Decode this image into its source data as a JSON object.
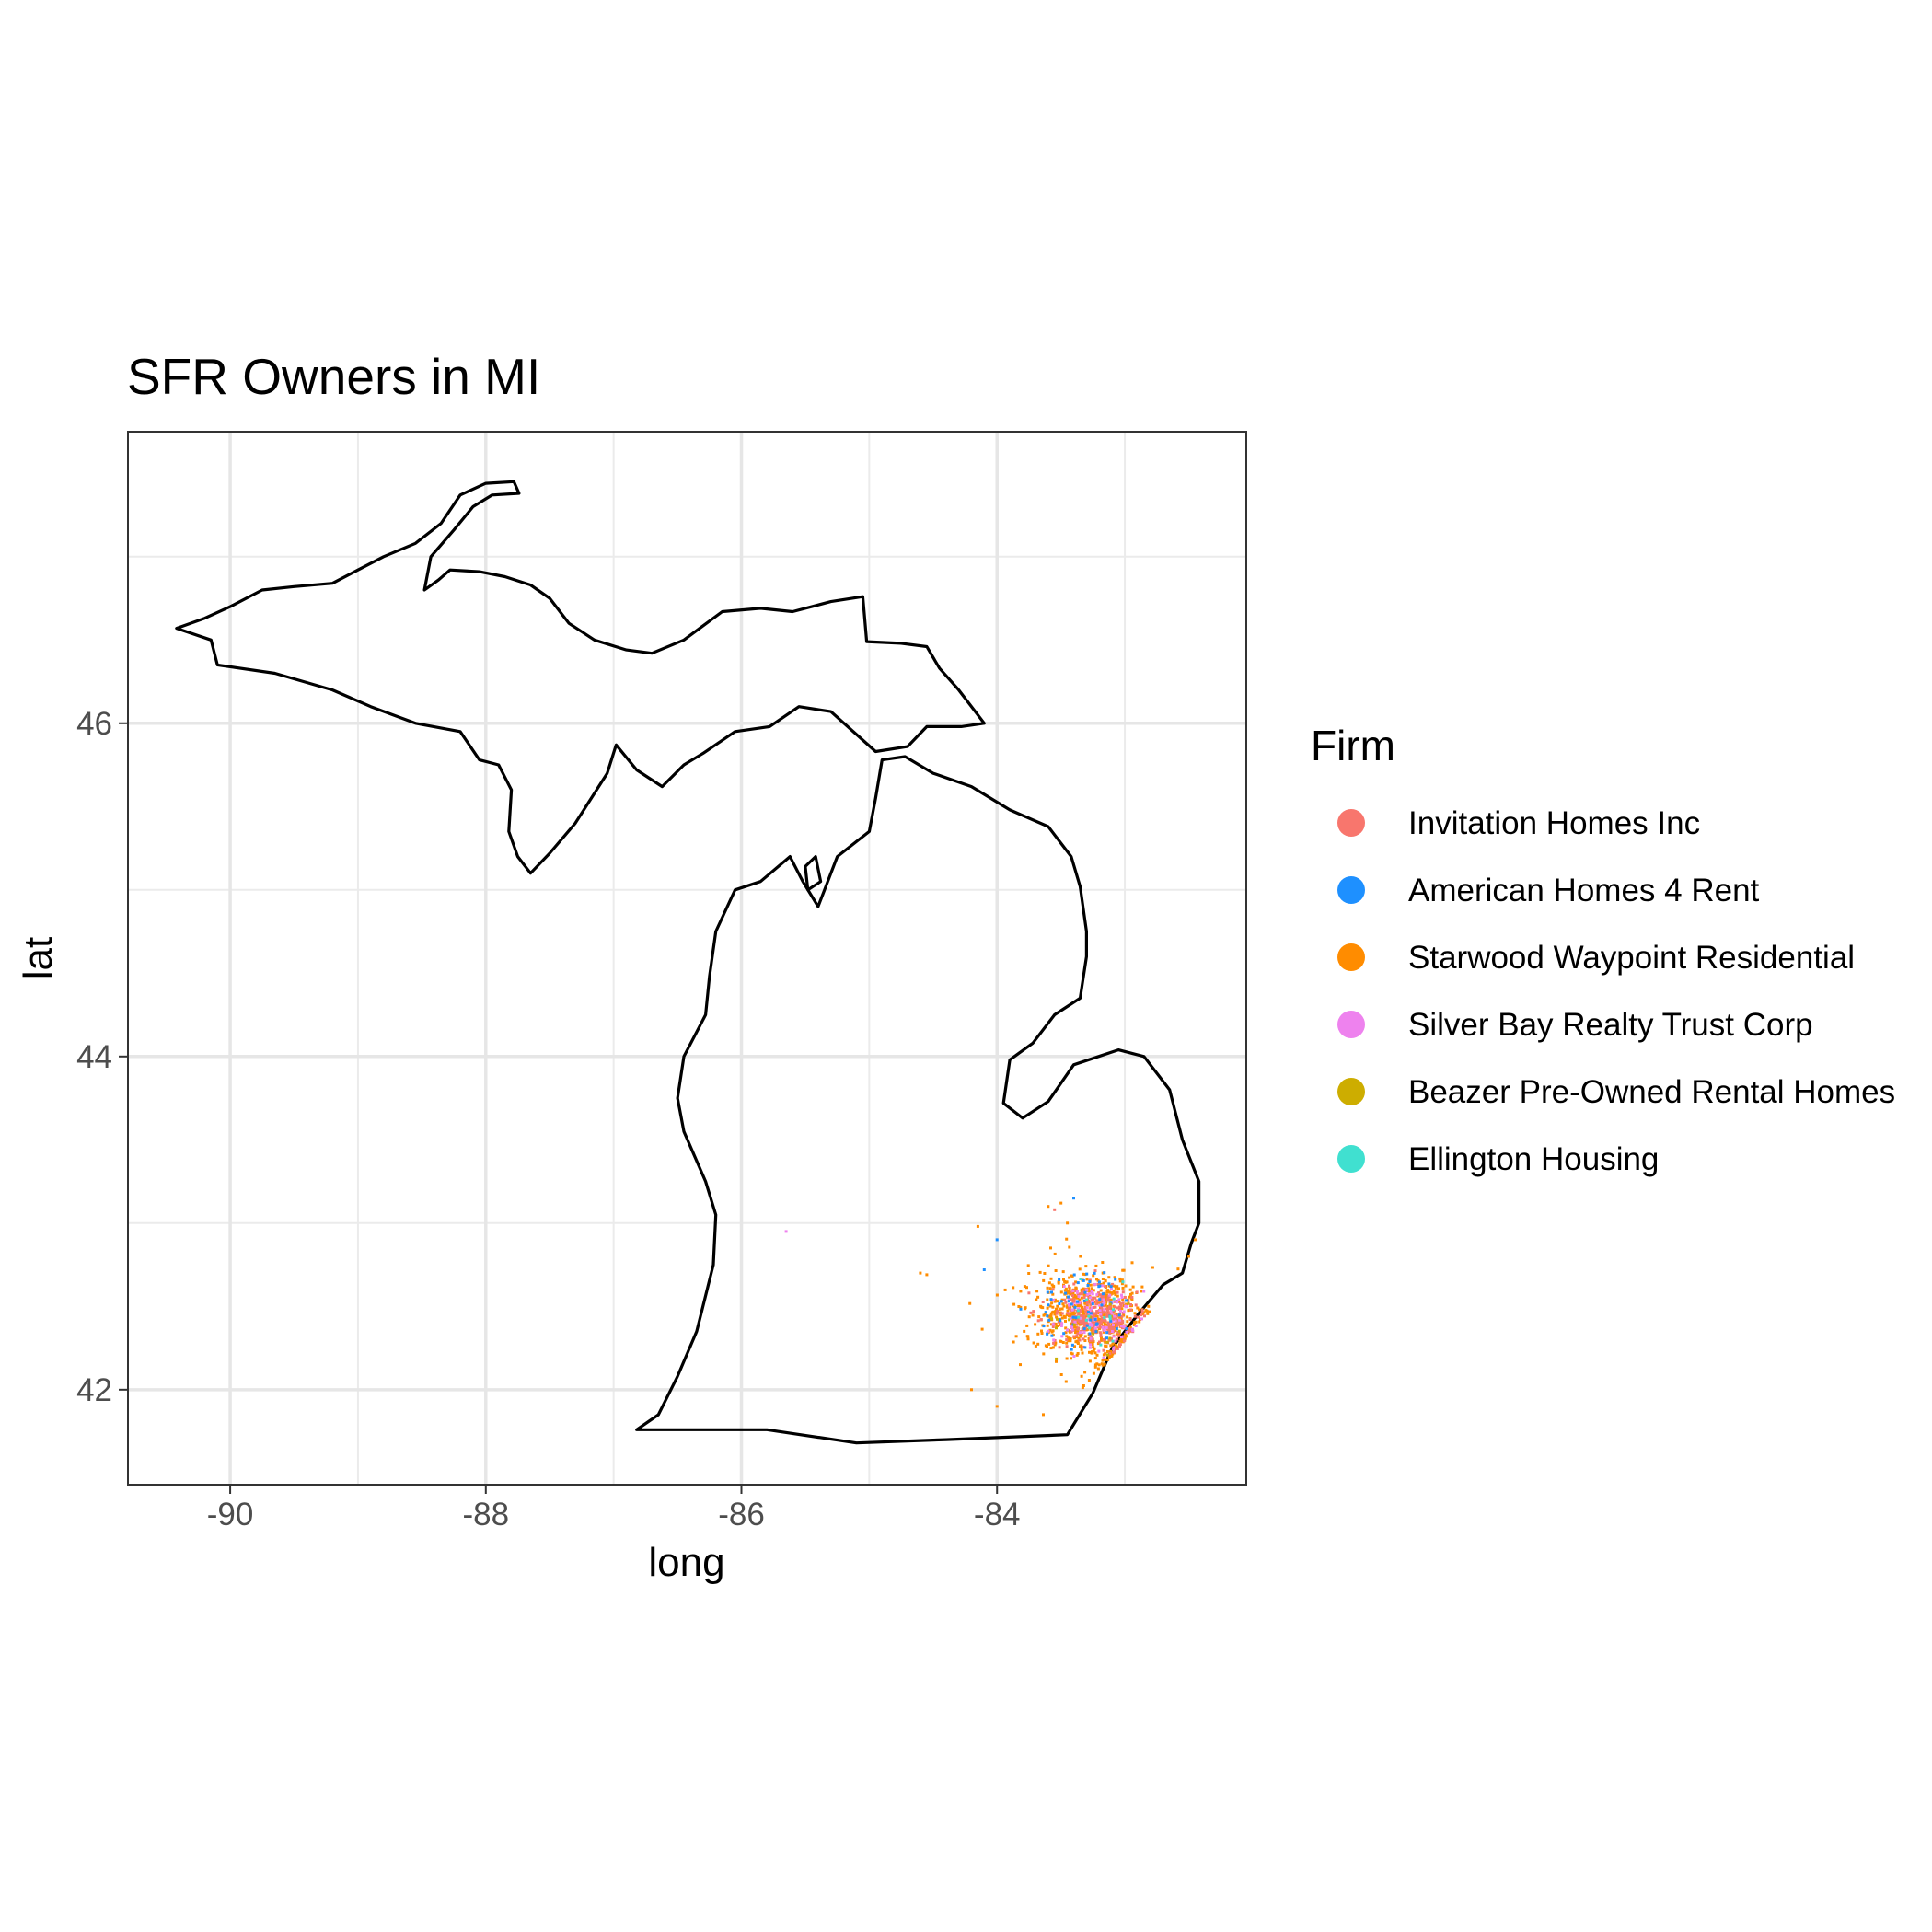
{
  "chart_data": {
    "type": "scatter",
    "title": "SFR Owners in MI",
    "xlabel": "long",
    "ylabel": "lat",
    "xlim": [
      -90.8,
      -82.05
    ],
    "ylim": [
      41.43,
      47.75
    ],
    "xticks": [
      -90,
      -88,
      -86,
      -84
    ],
    "yticks": [
      42,
      44,
      46
    ],
    "xtick_labels": [
      "-90",
      "-88",
      "-86",
      "-84"
    ],
    "ytick_labels": [
      "42",
      "44",
      "46"
    ],
    "grid": true,
    "legend": {
      "title": "Firm",
      "position": "right",
      "entries": [
        {
          "name": "Invitation Homes Inc",
          "color": "#F8766D"
        },
        {
          "name": "American Homes 4 Rent",
          "color": "#1E90FF"
        },
        {
          "name": "Starwood Waypoint Residential",
          "color": "#FF8C00"
        },
        {
          "name": "Silver Bay Realty Trust Corp",
          "color": "#EE82EE"
        },
        {
          "name": "Beazer Pre-Owned Rental Homes",
          "color": "#CDAD00"
        },
        {
          "name": "Ellington Housing",
          "color": "#40E0D0"
        }
      ]
    },
    "outline": {
      "upper_peninsula": [
        [
          -90.42,
          46.57
        ],
        [
          -90.2,
          46.63
        ],
        [
          -90.0,
          46.7
        ],
        [
          -89.75,
          46.8
        ],
        [
          -89.5,
          46.82
        ],
        [
          -89.2,
          46.84
        ],
        [
          -89.0,
          46.92
        ],
        [
          -88.8,
          47.0
        ],
        [
          -88.55,
          47.08
        ],
        [
          -88.35,
          47.2
        ],
        [
          -88.2,
          47.37
        ],
        [
          -88.0,
          47.44
        ],
        [
          -87.78,
          47.45
        ],
        [
          -87.74,
          47.38
        ],
        [
          -87.95,
          47.37
        ],
        [
          -88.1,
          47.3
        ],
        [
          -88.25,
          47.16
        ],
        [
          -88.43,
          47.0
        ],
        [
          -88.48,
          46.8
        ],
        [
          -88.37,
          46.86
        ],
        [
          -88.28,
          46.92
        ],
        [
          -88.05,
          46.91
        ],
        [
          -87.85,
          46.88
        ],
        [
          -87.65,
          46.83
        ],
        [
          -87.5,
          46.75
        ],
        [
          -87.35,
          46.6
        ],
        [
          -87.15,
          46.5
        ],
        [
          -86.9,
          46.44
        ],
        [
          -86.7,
          46.42
        ],
        [
          -86.45,
          46.5
        ],
        [
          -86.15,
          46.67
        ],
        [
          -85.85,
          46.69
        ],
        [
          -85.6,
          46.67
        ],
        [
          -85.3,
          46.73
        ],
        [
          -85.05,
          46.76
        ],
        [
          -85.02,
          46.49
        ],
        [
          -84.75,
          46.48
        ],
        [
          -84.55,
          46.46
        ],
        [
          -84.45,
          46.33
        ],
        [
          -84.3,
          46.2
        ],
        [
          -84.1,
          46.0
        ],
        [
          -84.28,
          45.98
        ],
        [
          -84.55,
          45.98
        ],
        [
          -84.7,
          45.86
        ],
        [
          -84.95,
          45.83
        ],
        [
          -85.3,
          46.07
        ],
        [
          -85.55,
          46.1
        ],
        [
          -85.78,
          45.98
        ],
        [
          -86.05,
          45.95
        ],
        [
          -86.3,
          45.82
        ],
        [
          -86.45,
          45.75
        ],
        [
          -86.62,
          45.62
        ],
        [
          -86.82,
          45.72
        ],
        [
          -86.98,
          45.87
        ],
        [
          -87.05,
          45.7
        ],
        [
          -87.3,
          45.4
        ],
        [
          -87.5,
          45.22
        ],
        [
          -87.65,
          45.1
        ],
        [
          -87.75,
          45.2
        ],
        [
          -87.82,
          45.35
        ],
        [
          -87.8,
          45.6
        ],
        [
          -87.9,
          45.75
        ],
        [
          -88.05,
          45.78
        ],
        [
          -88.2,
          45.95
        ],
        [
          -88.55,
          46.0
        ],
        [
          -88.9,
          46.1
        ],
        [
          -89.2,
          46.2
        ],
        [
          -89.65,
          46.3
        ],
        [
          -90.1,
          46.35
        ],
        [
          -90.15,
          46.5
        ],
        [
          -90.42,
          46.57
        ]
      ],
      "lower_peninsula": [
        [
          -86.82,
          41.76
        ],
        [
          -86.65,
          41.85
        ],
        [
          -86.5,
          42.08
        ],
        [
          -86.35,
          42.35
        ],
        [
          -86.22,
          42.75
        ],
        [
          -86.2,
          43.05
        ],
        [
          -86.28,
          43.25
        ],
        [
          -86.45,
          43.55
        ],
        [
          -86.5,
          43.75
        ],
        [
          -86.45,
          44.0
        ],
        [
          -86.28,
          44.25
        ],
        [
          -86.25,
          44.48
        ],
        [
          -86.2,
          44.75
        ],
        [
          -86.05,
          45.0
        ],
        [
          -85.85,
          45.05
        ],
        [
          -85.62,
          45.2
        ],
        [
          -85.52,
          45.05
        ],
        [
          -85.4,
          44.9
        ],
        [
          -85.35,
          45.0
        ],
        [
          -85.25,
          45.2
        ],
        [
          -85.0,
          45.35
        ],
        [
          -84.95,
          45.55
        ],
        [
          -84.9,
          45.78
        ],
        [
          -84.72,
          45.8
        ],
        [
          -84.5,
          45.7
        ],
        [
          -84.2,
          45.62
        ],
        [
          -83.9,
          45.48
        ],
        [
          -83.6,
          45.38
        ],
        [
          -83.42,
          45.2
        ],
        [
          -83.35,
          45.02
        ],
        [
          -83.3,
          44.75
        ],
        [
          -83.3,
          44.6
        ],
        [
          -83.35,
          44.35
        ],
        [
          -83.55,
          44.25
        ],
        [
          -83.72,
          44.08
        ],
        [
          -83.9,
          43.98
        ],
        [
          -83.95,
          43.72
        ],
        [
          -83.8,
          43.63
        ],
        [
          -83.6,
          43.73
        ],
        [
          -83.4,
          43.95
        ],
        [
          -83.05,
          44.04
        ],
        [
          -82.85,
          44.0
        ],
        [
          -82.65,
          43.8
        ],
        [
          -82.55,
          43.5
        ],
        [
          -82.42,
          43.25
        ],
        [
          -82.42,
          43.0
        ],
        [
          -82.48,
          42.88
        ],
        [
          -82.55,
          42.7
        ],
        [
          -82.7,
          42.63
        ],
        [
          -82.9,
          42.45
        ],
        [
          -83.1,
          42.25
        ],
        [
          -83.25,
          41.98
        ],
        [
          -83.45,
          41.73
        ],
        [
          -84.4,
          41.7
        ],
        [
          -85.1,
          41.68
        ],
        [
          -85.8,
          41.76
        ],
        [
          -86.82,
          41.76
        ]
      ],
      "islands": [
        [
          [
            -85.5,
            45.14
          ],
          [
            -85.42,
            45.2
          ],
          [
            -85.38,
            45.05
          ],
          [
            -85.48,
            45.0
          ],
          [
            -85.5,
            45.14
          ]
        ]
      ]
    },
    "point_clusters": [
      {
        "name": "Invitation Homes Inc",
        "center": [
          -83.22,
          42.44
        ],
        "spread": [
          0.3,
          0.16
        ],
        "count": 320
      },
      {
        "name": "American Homes 4 Rent",
        "center": [
          -83.3,
          42.5
        ],
        "spread": [
          0.35,
          0.22
        ],
        "count": 70
      },
      {
        "name": "Starwood Waypoint Residential",
        "center": [
          -83.28,
          42.45
        ],
        "spread": [
          0.42,
          0.26
        ],
        "count": 650
      },
      {
        "name": "Silver Bay Realty Trust Corp",
        "center": [
          -83.25,
          42.45
        ],
        "spread": [
          0.35,
          0.2
        ],
        "count": 110
      },
      {
        "name": "Beazer Pre-Owned Rental Homes",
        "center": [
          -83.2,
          42.42
        ],
        "spread": [
          0.3,
          0.18
        ],
        "count": 15
      },
      {
        "name": "Ellington Housing",
        "center": [
          -83.25,
          42.45
        ],
        "spread": [
          0.3,
          0.18
        ],
        "count": 15
      }
    ],
    "outliers": [
      {
        "name": "Silver Bay Realty Trust Corp",
        "points": [
          [
            -85.65,
            42.95
          ]
        ]
      },
      {
        "name": "Starwood Waypoint Residential",
        "points": [
          [
            -84.6,
            42.7
          ],
          [
            -84.55,
            42.69
          ],
          [
            -84.0,
            41.9
          ],
          [
            -84.2,
            42.0
          ],
          [
            -84.15,
            42.98
          ],
          [
            -83.5,
            43.12
          ],
          [
            -83.6,
            43.1
          ],
          [
            -83.45,
            43.0
          ],
          [
            -82.45,
            42.9
          ],
          [
            -82.5,
            42.8
          ]
        ]
      },
      {
        "name": "American Homes 4 Rent",
        "points": [
          [
            -83.4,
            43.15
          ],
          [
            -84.0,
            42.9
          ],
          [
            -84.1,
            42.72
          ]
        ]
      },
      {
        "name": "Invitation Homes Inc",
        "points": [
          [
            -83.55,
            43.08
          ],
          [
            -83.75,
            42.58
          ]
        ]
      }
    ]
  }
}
